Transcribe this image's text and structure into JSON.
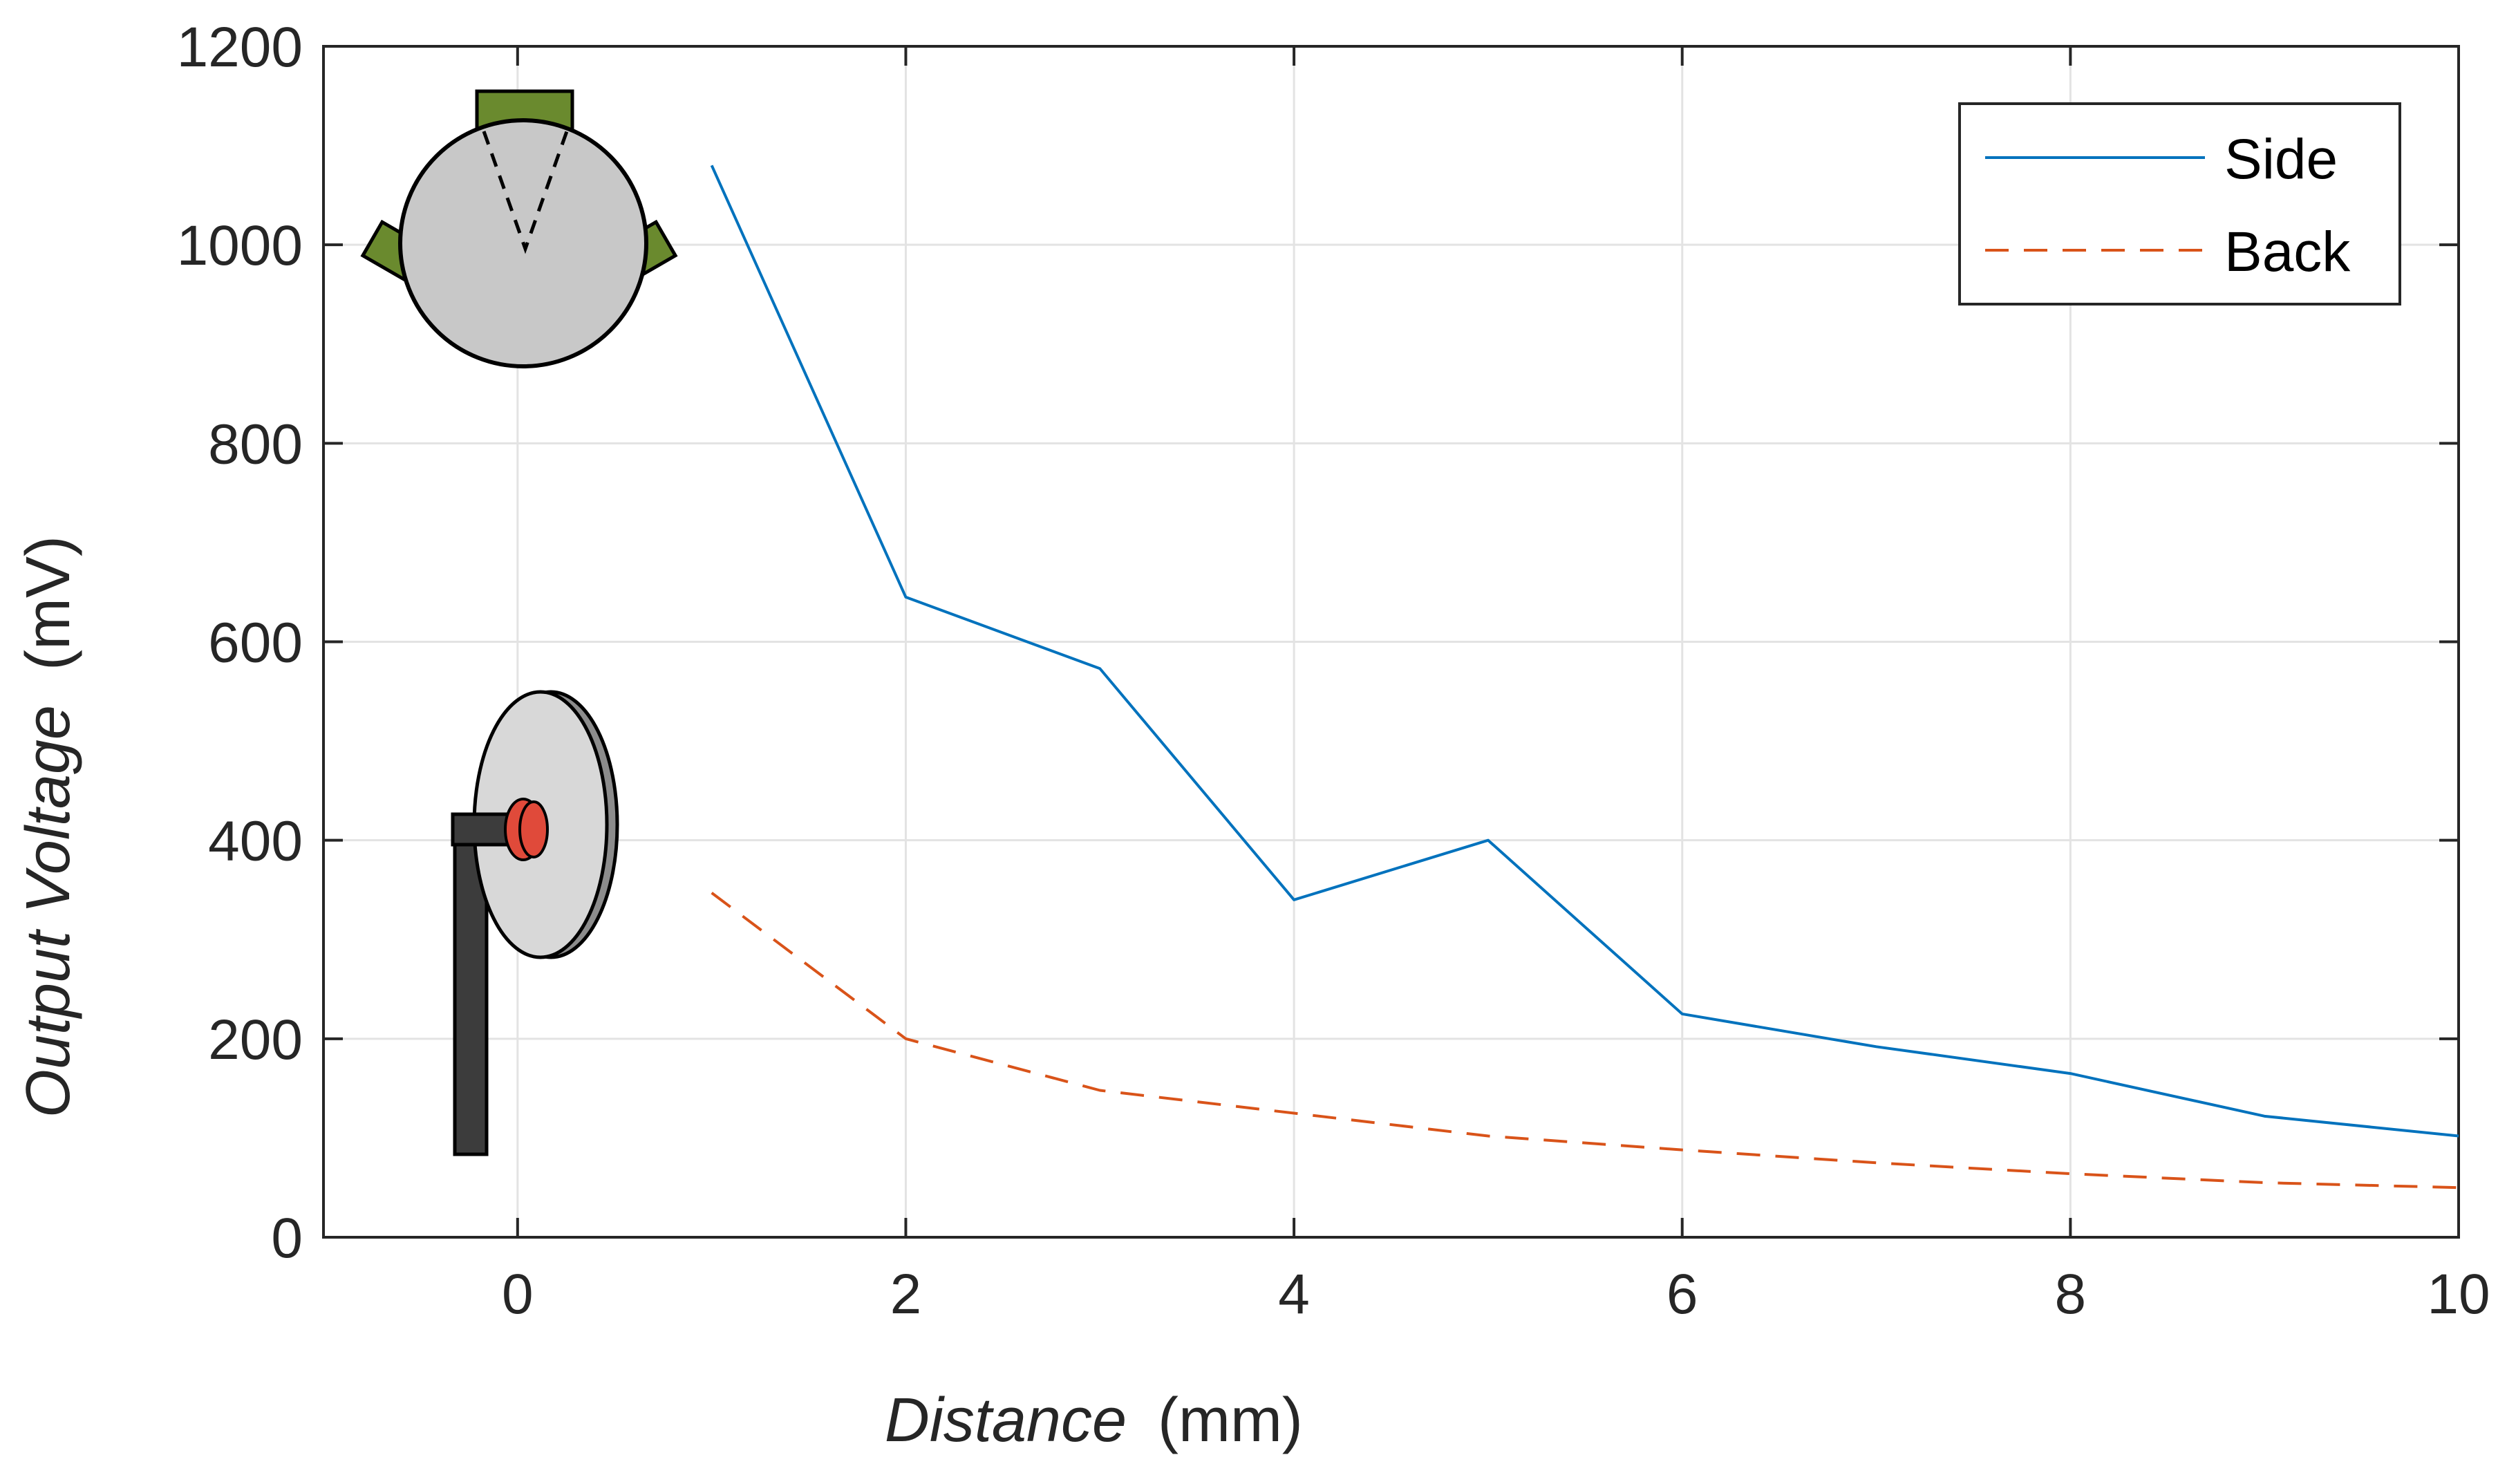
{
  "chart_data": {
    "type": "line",
    "xlabel_main": "Distance",
    "xlabel_unit": "(mm)",
    "ylabel_main": "Output Voltage",
    "ylabel_unit": "(mV)",
    "xlim": [
      -1,
      10
    ],
    "ylim": [
      0,
      1200
    ],
    "xticks": [
      0,
      2,
      4,
      6,
      8,
      10
    ],
    "yticks": [
      0,
      200,
      400,
      600,
      800,
      1000,
      1200
    ],
    "grid": true,
    "legend_position": "top-right",
    "series": [
      {
        "name": "Side",
        "style": "solid",
        "color": "#0072BD",
        "x": [
          1,
          2,
          3,
          4,
          5,
          6,
          7,
          8,
          9,
          10
        ],
        "y": [
          1080,
          645,
          573,
          340,
          400,
          225,
          192,
          165,
          122,
          102
        ]
      },
      {
        "name": "Back",
        "style": "dashed",
        "color": "#D95319",
        "x": [
          1,
          2,
          3,
          4,
          5,
          6,
          7,
          8,
          9,
          10
        ],
        "y": [
          347,
          200,
          148,
          125,
          102,
          88,
          75,
          64,
          55,
          50
        ]
      }
    ],
    "colors": {
      "sensor_pad": "#6A8A2E",
      "disc_face": "#C8C8C8",
      "disc_edge": "#8C8C8C",
      "bracket": "#3C3C3C",
      "knob": "#E04A3A"
    }
  }
}
